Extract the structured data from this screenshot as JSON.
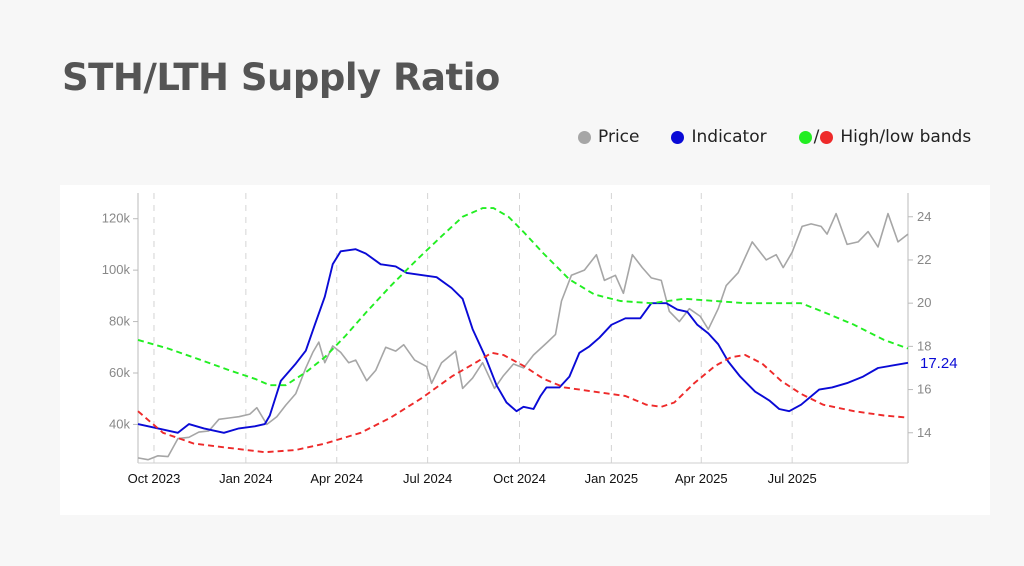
{
  "title": "STH/LTH Supply Ratio",
  "legend": {
    "price": {
      "label": "Price",
      "color": "#a6a6a6"
    },
    "indicator": {
      "label": "Indicator",
      "color": "#0a0ad6"
    },
    "bands": {
      "label": "High/low bands",
      "slash": "/",
      "high_color": "#22ee22",
      "low_color": "#ee2a2a"
    }
  },
  "chart_data": {
    "type": "line",
    "title": "STH/LTH Supply Ratio",
    "x_tick_labels": [
      "Oct 2023",
      "Jan 2024",
      "Apr 2024",
      "Jul 2024",
      "Oct 2024",
      "Jan 2025",
      "Apr 2025",
      "Jul 2025"
    ],
    "x_tick_dates": [
      "2023-10-01",
      "2024-01-01",
      "2024-04-01",
      "2024-07-01",
      "2024-10-01",
      "2025-01-01",
      "2025-04-01",
      "2025-07-01"
    ],
    "x_range": [
      "2023-09-15",
      "2025-10-25"
    ],
    "y_left": {
      "range": [
        25000,
        130000
      ],
      "ticks": [
        40000,
        60000,
        80000,
        100000,
        120000
      ],
      "tick_labels": [
        "40k",
        "60k",
        "80k",
        "100k",
        "120k"
      ]
    },
    "y_right": {
      "range": [
        12.6,
        25.1
      ],
      "ticks": [
        14,
        16,
        18,
        20,
        22,
        24
      ],
      "tick_labels": [
        "14",
        "16",
        "18",
        "20",
        "22",
        "24"
      ]
    },
    "last_value_label": "17.24",
    "grid": {
      "vertical_dashed": true,
      "horizontal": false
    },
    "series": [
      {
        "name": "Price",
        "axis": "left",
        "color": "#a6a6a6",
        "points": [
          [
            "2023-09-15",
            27000
          ],
          [
            "2023-09-25",
            26300
          ],
          [
            "2023-10-05",
            27800
          ],
          [
            "2023-10-15",
            27500
          ],
          [
            "2023-10-25",
            34500
          ],
          [
            "2023-11-05",
            35000
          ],
          [
            "2023-11-15",
            37000
          ],
          [
            "2023-11-25",
            37500
          ],
          [
            "2023-12-05",
            42000
          ],
          [
            "2023-12-15",
            42500
          ],
          [
            "2023-12-25",
            43000
          ],
          [
            "2024-01-05",
            44000
          ],
          [
            "2024-01-12",
            46500
          ],
          [
            "2024-01-22",
            40000
          ],
          [
            "2024-02-01",
            43000
          ],
          [
            "2024-02-10",
            47500
          ],
          [
            "2024-02-20",
            52000
          ],
          [
            "2024-03-01",
            62000
          ],
          [
            "2024-03-08",
            68000
          ],
          [
            "2024-03-14",
            72000
          ],
          [
            "2024-03-20",
            64000
          ],
          [
            "2024-03-28",
            70500
          ],
          [
            "2024-04-05",
            68000
          ],
          [
            "2024-04-13",
            64000
          ],
          [
            "2024-04-20",
            65000
          ],
          [
            "2024-05-01",
            57000
          ],
          [
            "2024-05-10",
            61000
          ],
          [
            "2024-05-20",
            70000
          ],
          [
            "2024-05-30",
            68500
          ],
          [
            "2024-06-07",
            71000
          ],
          [
            "2024-06-18",
            65000
          ],
          [
            "2024-06-30",
            62500
          ],
          [
            "2024-07-05",
            56000
          ],
          [
            "2024-07-15",
            64000
          ],
          [
            "2024-07-29",
            68500
          ],
          [
            "2024-08-05",
            54000
          ],
          [
            "2024-08-15",
            58000
          ],
          [
            "2024-08-25",
            64000
          ],
          [
            "2024-09-06",
            54000
          ],
          [
            "2024-09-15",
            59000
          ],
          [
            "2024-09-25",
            63500
          ],
          [
            "2024-10-05",
            62000
          ],
          [
            "2024-10-15",
            67000
          ],
          [
            "2024-10-29",
            72000
          ],
          [
            "2024-11-06",
            75000
          ],
          [
            "2024-11-12",
            88000
          ],
          [
            "2024-11-22",
            98000
          ],
          [
            "2024-12-05",
            100000
          ],
          [
            "2024-12-17",
            106000
          ],
          [
            "2024-12-25",
            96000
          ],
          [
            "2025-01-05",
            98000
          ],
          [
            "2025-01-13",
            91000
          ],
          [
            "2025-01-22",
            106000
          ],
          [
            "2025-02-01",
            101000
          ],
          [
            "2025-02-10",
            97000
          ],
          [
            "2025-02-20",
            96000
          ],
          [
            "2025-02-28",
            84000
          ],
          [
            "2025-03-10",
            80000
          ],
          [
            "2025-03-20",
            85000
          ],
          [
            "2025-03-31",
            82000
          ],
          [
            "2025-04-08",
            77000
          ],
          [
            "2025-04-18",
            85000
          ],
          [
            "2025-04-26",
            94000
          ],
          [
            "2025-05-08",
            99000
          ],
          [
            "2025-05-22",
            111000
          ],
          [
            "2025-06-05",
            104000
          ],
          [
            "2025-06-15",
            106000
          ],
          [
            "2025-06-22",
            101000
          ],
          [
            "2025-07-01",
            107000
          ],
          [
            "2025-07-11",
            117000
          ],
          [
            "2025-07-20",
            118000
          ],
          [
            "2025-07-30",
            117000
          ],
          [
            "2025-08-05",
            114000
          ],
          [
            "2025-08-14",
            122000
          ],
          [
            "2025-08-25",
            110000
          ],
          [
            "2025-09-05",
            111000
          ],
          [
            "2025-09-15",
            115000
          ],
          [
            "2025-09-25",
            109000
          ],
          [
            "2025-10-05",
            122000
          ],
          [
            "2025-10-15",
            111000
          ],
          [
            "2025-10-25",
            114000
          ]
        ]
      },
      {
        "name": "Indicator",
        "axis": "right",
        "color": "#0a0ad6",
        "points": [
          [
            "2023-09-15",
            14.4
          ],
          [
            "2023-10-05",
            14.2
          ],
          [
            "2023-10-25",
            14.0
          ],
          [
            "2023-11-05",
            14.4
          ],
          [
            "2023-11-20",
            14.2
          ],
          [
            "2023-12-10",
            14.0
          ],
          [
            "2023-12-25",
            14.2
          ],
          [
            "2024-01-10",
            14.3
          ],
          [
            "2024-01-20",
            14.4
          ],
          [
            "2024-01-25",
            14.8
          ],
          [
            "2024-02-05",
            16.4
          ],
          [
            "2024-02-20",
            17.2
          ],
          [
            "2024-03-01",
            17.8
          ],
          [
            "2024-03-10",
            19.0
          ],
          [
            "2024-03-20",
            20.3
          ],
          [
            "2024-03-28",
            21.8
          ],
          [
            "2024-04-05",
            22.4
          ],
          [
            "2024-04-20",
            22.5
          ],
          [
            "2024-04-30",
            22.3
          ],
          [
            "2024-05-15",
            21.8
          ],
          [
            "2024-05-30",
            21.7
          ],
          [
            "2024-06-10",
            21.4
          ],
          [
            "2024-06-25",
            21.3
          ],
          [
            "2024-07-10",
            21.2
          ],
          [
            "2024-07-25",
            20.7
          ],
          [
            "2024-08-05",
            20.2
          ],
          [
            "2024-08-15",
            18.8
          ],
          [
            "2024-08-28",
            17.5
          ],
          [
            "2024-09-08",
            16.2
          ],
          [
            "2024-09-18",
            15.4
          ],
          [
            "2024-09-28",
            15.0
          ],
          [
            "2024-10-05",
            15.2
          ],
          [
            "2024-10-15",
            15.1
          ],
          [
            "2024-10-22",
            15.7
          ],
          [
            "2024-10-28",
            16.1
          ],
          [
            "2024-11-10",
            16.1
          ],
          [
            "2024-11-20",
            16.6
          ],
          [
            "2024-11-30",
            17.7
          ],
          [
            "2024-12-10",
            18.0
          ],
          [
            "2024-12-20",
            18.4
          ],
          [
            "2025-01-01",
            19.0
          ],
          [
            "2025-01-15",
            19.3
          ],
          [
            "2025-01-30",
            19.3
          ],
          [
            "2025-02-10",
            20.0
          ],
          [
            "2025-02-25",
            20.0
          ],
          [
            "2025-03-08",
            19.7
          ],
          [
            "2025-03-18",
            19.6
          ],
          [
            "2025-03-28",
            19.0
          ],
          [
            "2025-04-08",
            18.6
          ],
          [
            "2025-04-18",
            18.1
          ],
          [
            "2025-04-28",
            17.3
          ],
          [
            "2025-05-10",
            16.6
          ],
          [
            "2025-05-25",
            15.9
          ],
          [
            "2025-06-08",
            15.5
          ],
          [
            "2025-06-18",
            15.1
          ],
          [
            "2025-06-28",
            15.0
          ],
          [
            "2025-07-10",
            15.3
          ],
          [
            "2025-07-28",
            16.0
          ],
          [
            "2025-08-10",
            16.1
          ],
          [
            "2025-08-25",
            16.3
          ],
          [
            "2025-09-10",
            16.6
          ],
          [
            "2025-09-25",
            17.0
          ],
          [
            "2025-10-25",
            17.24
          ]
        ]
      },
      {
        "name": "High band",
        "axis": "right",
        "color": "#22ee22",
        "dashed": true,
        "points": [
          [
            "2023-09-15",
            18.3
          ],
          [
            "2023-10-15",
            17.9
          ],
          [
            "2023-11-15",
            17.4
          ],
          [
            "2023-12-15",
            16.9
          ],
          [
            "2024-01-10",
            16.5
          ],
          [
            "2024-01-25",
            16.2
          ],
          [
            "2024-02-10",
            16.2
          ],
          [
            "2024-03-01",
            16.8
          ],
          [
            "2024-03-20",
            17.5
          ],
          [
            "2024-04-10",
            18.5
          ],
          [
            "2024-05-01",
            19.6
          ],
          [
            "2024-05-25",
            20.8
          ],
          [
            "2024-06-20",
            22.0
          ],
          [
            "2024-07-15",
            23.1
          ],
          [
            "2024-08-05",
            24.0
          ],
          [
            "2024-08-25",
            24.4
          ],
          [
            "2024-09-05",
            24.4
          ],
          [
            "2024-09-20",
            24.0
          ],
          [
            "2024-10-05",
            23.3
          ],
          [
            "2024-10-25",
            22.3
          ],
          [
            "2024-11-20",
            21.1
          ],
          [
            "2024-12-15",
            20.4
          ],
          [
            "2025-01-10",
            20.1
          ],
          [
            "2025-02-10",
            20.0
          ],
          [
            "2025-03-15",
            20.2
          ],
          [
            "2025-04-15",
            20.1
          ],
          [
            "2025-05-15",
            20.0
          ],
          [
            "2025-06-15",
            20.0
          ],
          [
            "2025-07-10",
            20.0
          ],
          [
            "2025-08-01",
            19.6
          ],
          [
            "2025-09-01",
            19.0
          ],
          [
            "2025-10-01",
            18.3
          ],
          [
            "2025-10-25",
            17.9
          ]
        ]
      },
      {
        "name": "Low band",
        "axis": "right",
        "color": "#ee2a2a",
        "dashed": true,
        "points": [
          [
            "2023-09-15",
            15.0
          ],
          [
            "2023-10-10",
            14.0
          ],
          [
            "2023-11-10",
            13.5
          ],
          [
            "2023-12-15",
            13.3
          ],
          [
            "2024-01-20",
            13.1
          ],
          [
            "2024-02-20",
            13.2
          ],
          [
            "2024-03-20",
            13.5
          ],
          [
            "2024-04-25",
            14.0
          ],
          [
            "2024-05-25",
            14.7
          ],
          [
            "2024-06-25",
            15.6
          ],
          [
            "2024-07-25",
            16.6
          ],
          [
            "2024-08-20",
            17.3
          ],
          [
            "2024-09-03",
            17.7
          ],
          [
            "2024-09-15",
            17.6
          ],
          [
            "2024-10-05",
            17.1
          ],
          [
            "2024-10-25",
            16.5
          ],
          [
            "2024-11-15",
            16.1
          ],
          [
            "2024-12-15",
            15.9
          ],
          [
            "2025-01-15",
            15.7
          ],
          [
            "2025-02-05",
            15.3
          ],
          [
            "2025-02-20",
            15.2
          ],
          [
            "2025-03-05",
            15.4
          ],
          [
            "2025-03-25",
            16.3
          ],
          [
            "2025-04-15",
            17.1
          ],
          [
            "2025-05-01",
            17.5
          ],
          [
            "2025-05-15",
            17.6
          ],
          [
            "2025-06-01",
            17.2
          ],
          [
            "2025-06-20",
            16.4
          ],
          [
            "2025-07-10",
            15.8
          ],
          [
            "2025-08-01",
            15.3
          ],
          [
            "2025-09-01",
            15.0
          ],
          [
            "2025-10-01",
            14.8
          ],
          [
            "2025-10-25",
            14.7
          ]
        ]
      }
    ]
  }
}
